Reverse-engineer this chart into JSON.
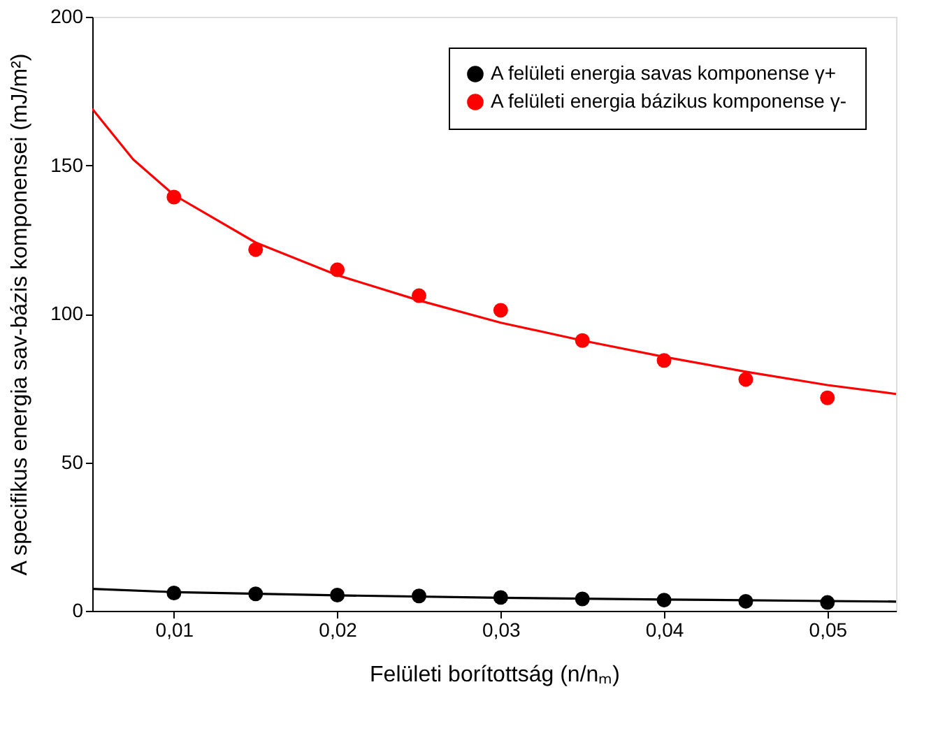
{
  "chart_data": {
    "type": "scatter",
    "xlabel": "Felületi borítottság (n/nₘ)",
    "ylabel": "A specifikus energia sav-bázis komponensei (mJ/m²)",
    "xlim": [
      0.005,
      0.0542
    ],
    "xticks": [
      {
        "value": 0.01,
        "label": "0,01"
      },
      {
        "value": 0.02,
        "label": "0,02"
      },
      {
        "value": 0.03,
        "label": "0,03"
      },
      {
        "value": 0.04,
        "label": "0,04"
      },
      {
        "value": 0.05,
        "label": "0,05"
      }
    ],
    "ylim": [
      0,
      200
    ],
    "yticks": [
      0,
      50,
      100,
      150,
      200
    ],
    "x": [
      0.01,
      0.015,
      0.02,
      0.025,
      0.03,
      0.035,
      0.04,
      0.045,
      0.05
    ],
    "marker": "circle",
    "grid": false,
    "legend": "top right",
    "series": [
      {
        "name": "A felületi energia savas komponense γ+",
        "color": "#000000",
        "values": [
          6.0,
          5.7,
          5.3,
          5.0,
          4.5,
          4.0,
          3.6,
          3.2,
          2.8
        ]
      },
      {
        "name": "A felületi energia bázikus komponense γ-",
        "color": "#ff0000",
        "values": [
          139.3,
          121.6,
          114.8,
          106.1,
          101.2,
          91.0,
          84.3,
          77.9,
          71.7
        ]
      },
      {
        "type": "line",
        "marker": "none",
        "color": "#000000",
        "x": [
          0.005,
          0.01,
          0.02,
          0.03,
          0.04,
          0.05,
          0.0542
        ],
        "values": [
          7.4,
          6.3,
          5.2,
          4.4,
          3.8,
          3.3,
          3.1
        ]
      },
      {
        "type": "line",
        "marker": "none",
        "color": "#ff0000",
        "x": [
          0.005,
          0.0075,
          0.01,
          0.015,
          0.02,
          0.025,
          0.03,
          0.035,
          0.04,
          0.045,
          0.05,
          0.0542
        ],
        "values": [
          169,
          152,
          140,
          124,
          113,
          104.5,
          97,
          91,
          85.5,
          80.5,
          76,
          73
        ]
      }
    ]
  }
}
